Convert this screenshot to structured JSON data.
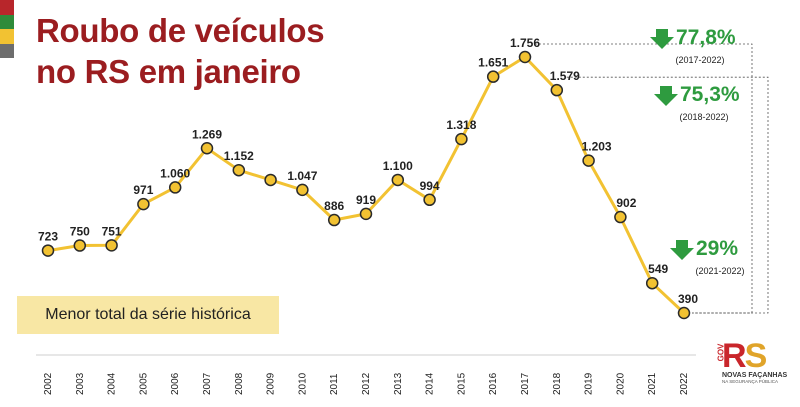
{
  "title": {
    "line1": "Roubo de veículos",
    "line2": "no RS em janeiro"
  },
  "colors": {
    "title": "#9b1d20",
    "line": "#f2c232",
    "marker_fill": "#f2c232",
    "marker_stroke": "#2a2a2a",
    "highlight": "#2e9b3f",
    "note_bg": "#f8e7a4",
    "flag": [
      "#b8262b",
      "#2e8b3a",
      "#f2c232",
      "#6d6d6d"
    ]
  },
  "chart_data": {
    "type": "line",
    "title": "Roubo de veículos no RS em janeiro",
    "xlabel": "",
    "ylabel": "",
    "x": [
      "2002",
      "2003",
      "2004",
      "2005",
      "2006",
      "2007",
      "2008",
      "2009",
      "2010",
      "2011",
      "2012",
      "2013",
      "2014",
      "2015",
      "2016",
      "2017",
      "2018",
      "2019",
      "2020",
      "2021",
      "2022"
    ],
    "values": [
      723,
      750,
      751,
      971,
      1060,
      1269,
      1152,
      1100,
      1047,
      886,
      919,
      1100,
      994,
      1318,
      1651,
      1756,
      1579,
      1203,
      902,
      549,
      390
    ],
    "value_labels": [
      "723",
      "750",
      "751",
      "971",
      "1.060",
      "1.269",
      "1.152",
      "",
      "1.047",
      "886",
      "919",
      "1.100",
      "994",
      "1.318",
      "1.651",
      "1.756",
      "1.579",
      "1.203",
      "902",
      "549",
      "390"
    ],
    "ylim": [
      390,
      1756
    ],
    "grid": false,
    "legend": "none",
    "annotations": [
      {
        "pct": "77,8%",
        "range": "(2017-2022)",
        "from": "2017",
        "to": "2022"
      },
      {
        "pct": "75,3%",
        "range": "(2018-2022)",
        "from": "2018",
        "to": "2022"
      },
      {
        "pct": "29%",
        "range": "(2021-2022)",
        "from": "2021",
        "to": "2022"
      }
    ],
    "note": "Menor total da série histórica"
  },
  "logo": {
    "gov": "GOV",
    "main_r": "R",
    "main_s": "S",
    "sub": "NOVAS FAÇANHAS",
    "sub2": "NA SEGURANÇA PÚBLICA"
  }
}
